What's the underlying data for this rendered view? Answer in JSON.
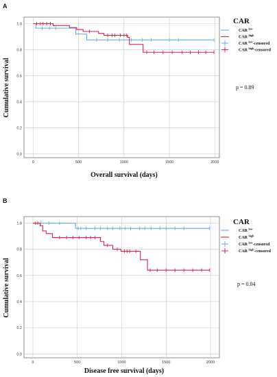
{
  "chart_data": [
    {
      "type": "line",
      "panel_label": "A",
      "xlabel": "Overall survival (days)",
      "ylabel": "Cumulative survival",
      "xlim": [
        -100,
        2050
      ],
      "ylim": [
        -0.03,
        1.05
      ],
      "xticks": [
        "0",
        "500",
        "1000",
        "1500",
        "2000"
      ],
      "yticks": [
        "0.0",
        "0.2",
        "0.4",
        "0.6",
        "0.8",
        "1.0"
      ],
      "grid": true,
      "legend": {
        "title": "CAR",
        "position": "right",
        "entries": [
          {
            "base": "CAR ",
            "sup": "low",
            "tail": "",
            "kind": "line",
            "color": "#6aa9e8"
          },
          {
            "base": "CAR ",
            "sup": "high",
            "tail": "",
            "kind": "line",
            "color": "#d6204e"
          },
          {
            "base": "CAR ",
            "sup": "low",
            "tail": "-censored",
            "kind": "plus",
            "color": "#6aa9e8"
          },
          {
            "base": "CAR ",
            "sup": "high",
            "tail": "-censored",
            "kind": "plus",
            "color": "#d6204e"
          }
        ]
      },
      "p_text": "p = 0.89",
      "series": [
        {
          "group": "low",
          "color": "#6aa9e8",
          "steps": [
            [
              0,
              1.0
            ],
            [
              30,
              0.965
            ],
            [
              470,
              0.92
            ],
            [
              590,
              0.875
            ],
            [
              1990,
              0.875
            ]
          ],
          "censored": [
            [
              100,
              0.965
            ],
            [
              180,
              0.965
            ],
            [
              250,
              0.965
            ],
            [
              700,
              0.875
            ],
            [
              820,
              0.875
            ],
            [
              950,
              0.875
            ],
            [
              1080,
              0.875
            ],
            [
              1200,
              0.875
            ],
            [
              1300,
              0.875
            ],
            [
              1500,
              0.875
            ],
            [
              1600,
              0.875
            ],
            [
              1990,
              0.875
            ]
          ]
        },
        {
          "group": "high",
          "color": "#d6204e",
          "steps": [
            [
              0,
              1.0
            ],
            [
              220,
              0.985
            ],
            [
              400,
              0.97
            ],
            [
              480,
              0.955
            ],
            [
              550,
              0.94
            ],
            [
              720,
              0.925
            ],
            [
              780,
              0.91
            ],
            [
              1040,
              0.895
            ],
            [
              1060,
              0.84
            ],
            [
              1210,
              0.78
            ],
            [
              1990,
              0.78
            ]
          ],
          "censored": [
            [
              40,
              1.0
            ],
            [
              80,
              1.0
            ],
            [
              110,
              1.0
            ],
            [
              150,
              1.0
            ],
            [
              190,
              1.0
            ],
            [
              620,
              0.94
            ],
            [
              820,
              0.91
            ],
            [
              870,
              0.91
            ],
            [
              900,
              0.91
            ],
            [
              960,
              0.91
            ],
            [
              1000,
              0.91
            ],
            [
              1030,
              0.91
            ],
            [
              1250,
              0.78
            ],
            [
              1330,
              0.78
            ],
            [
              1430,
              0.78
            ],
            [
              1530,
              0.78
            ],
            [
              1640,
              0.78
            ],
            [
              1730,
              0.78
            ],
            [
              1820,
              0.78
            ],
            [
              1900,
              0.78
            ],
            [
              1990,
              0.78
            ]
          ]
        }
      ]
    },
    {
      "type": "line",
      "panel_label": "B",
      "xlabel": "Disease free survival (days)",
      "ylabel": "Cumulative survival",
      "xlim": [
        -100,
        2100
      ],
      "ylim": [
        -0.03,
        1.05
      ],
      "xticks": [
        "0",
        "500",
        "1000",
        "1500",
        "2000"
      ],
      "yticks": [
        "0.0",
        "0.2",
        "0.4",
        "0.6",
        "0.8",
        "1.0"
      ],
      "grid": true,
      "legend": {
        "title": "CAR",
        "position": "right",
        "entries": [
          {
            "base": "CAR ",
            "sup": "low",
            "tail": "",
            "kind": "line",
            "color": "#6aa9e8"
          },
          {
            "base": "CAR ",
            "sup": "high",
            "tail": "",
            "kind": "line",
            "color": "#d6204e"
          },
          {
            "base": "CAR ",
            "sup": "low",
            "tail": "-censored",
            "kind": "plus",
            "color": "#6aa9e8"
          },
          {
            "base": "CAR ",
            "sup": "high",
            "tail": "-censored",
            "kind": "plus",
            "color": "#d6204e"
          }
        ]
      },
      "p_text": "p = 0.04",
      "series": [
        {
          "group": "low",
          "color": "#6aa9e8",
          "steps": [
            [
              0,
              1.0
            ],
            [
              480,
              0.96
            ],
            [
              1990,
              0.96
            ]
          ],
          "censored": [
            [
              90,
              1.0
            ],
            [
              180,
              1.0
            ],
            [
              300,
              1.0
            ],
            [
              510,
              0.96
            ],
            [
              540,
              0.96
            ],
            [
              600,
              0.96
            ],
            [
              700,
              0.96
            ],
            [
              760,
              0.96
            ],
            [
              840,
              0.96
            ],
            [
              900,
              0.96
            ],
            [
              980,
              0.96
            ],
            [
              1040,
              0.96
            ],
            [
              1100,
              0.96
            ],
            [
              1200,
              0.96
            ],
            [
              1260,
              0.96
            ],
            [
              1330,
              0.96
            ],
            [
              1430,
              0.96
            ],
            [
              1500,
              0.96
            ],
            [
              1600,
              0.96
            ],
            [
              1700,
              0.96
            ],
            [
              1990,
              0.96
            ]
          ]
        },
        {
          "group": "high",
          "color": "#d6204e",
          "steps": [
            [
              0,
              1.0
            ],
            [
              80,
              0.98
            ],
            [
              110,
              0.94
            ],
            [
              150,
              0.92
            ],
            [
              220,
              0.89
            ],
            [
              760,
              0.86
            ],
            [
              800,
              0.83
            ],
            [
              900,
              0.8
            ],
            [
              990,
              0.785
            ],
            [
              1210,
              0.72
            ],
            [
              1290,
              0.64
            ],
            [
              1990,
              0.64
            ]
          ],
          "censored": [
            [
              30,
              1.0
            ],
            [
              55,
              1.0
            ],
            [
              300,
              0.89
            ],
            [
              380,
              0.89
            ],
            [
              450,
              0.89
            ],
            [
              520,
              0.89
            ],
            [
              600,
              0.89
            ],
            [
              650,
              0.89
            ],
            [
              700,
              0.89
            ],
            [
              840,
              0.83
            ],
            [
              950,
              0.8
            ],
            [
              1030,
              0.785
            ],
            [
              1060,
              0.785
            ],
            [
              1090,
              0.785
            ],
            [
              1160,
              0.785
            ],
            [
              1320,
              0.64
            ],
            [
              1400,
              0.64
            ],
            [
              1500,
              0.64
            ],
            [
              1600,
              0.64
            ],
            [
              1700,
              0.64
            ],
            [
              1800,
              0.64
            ],
            [
              1900,
              0.64
            ],
            [
              1990,
              0.64
            ]
          ]
        }
      ]
    }
  ]
}
